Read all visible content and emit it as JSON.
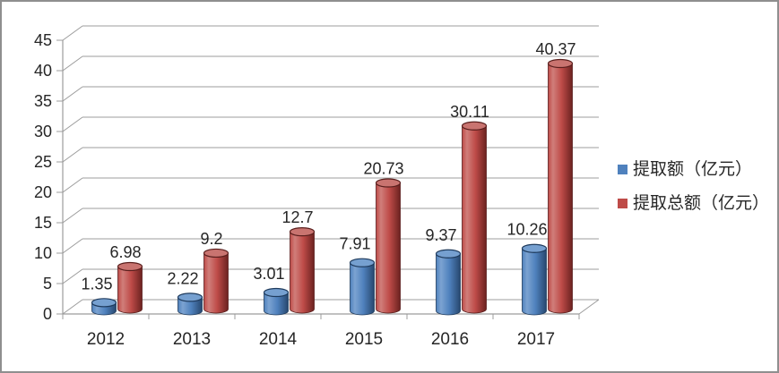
{
  "chart_data": {
    "type": "bar",
    "style": "3d-cylinder",
    "title": "",
    "xlabel": "",
    "ylabel": "",
    "categories": [
      "2012",
      "2013",
      "2014",
      "2015",
      "2016",
      "2017"
    ],
    "series": [
      {
        "name": "提取额（亿元）",
        "values": [
          1.35,
          2.22,
          3.01,
          7.91,
          9.37,
          10.26
        ],
        "labels": [
          "1.35",
          "2.22",
          "3.01",
          "7.91",
          "9.37",
          "10.26"
        ],
        "color": "#4F81BD",
        "color_light": "#7CA3D1",
        "color_dark": "#27476E",
        "top_fill": "#76A0D0",
        "outline": "#1F3B5D"
      },
      {
        "name": "提取总额（亿元）",
        "values": [
          6.98,
          9.2,
          12.7,
          20.73,
          30.11,
          40.37
        ],
        "labels": [
          "6.98",
          "9.2",
          "12.7",
          "20.73",
          "30.11",
          "40.37"
        ],
        "color": "#BE4B48",
        "color_light": "#D07E7A",
        "color_dark": "#6B2220",
        "top_fill": "#C97470",
        "outline": "#5A1F1D"
      }
    ],
    "ylim": [
      0,
      45
    ],
    "yticks": [
      0,
      5,
      10,
      15,
      20,
      25,
      30,
      35,
      40,
      45
    ],
    "grid": true,
    "legend_position": "right",
    "data_labels": true
  },
  "colors": {
    "frame_border": "#8f8f8f",
    "background": "#ffffff",
    "gridline": "#9c9c9c",
    "axis": "#9c9c9c",
    "text": "#262626"
  }
}
